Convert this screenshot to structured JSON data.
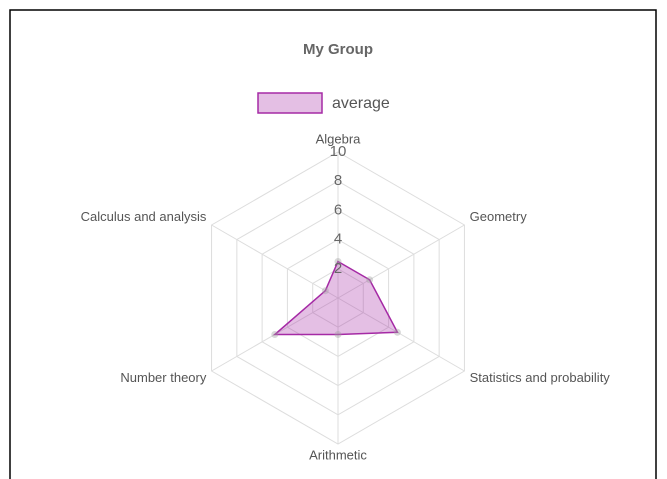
{
  "chart_data": {
    "type": "radar",
    "title": "My Group",
    "categories": [
      "Algebra",
      "Geometry",
      "Statistics and probability",
      "Arithmetic",
      "Number theory",
      "Calculus and analysis"
    ],
    "series": [
      {
        "name": "average",
        "color": "#a52aa5",
        "values": [
          2.5,
          2.5,
          4.7,
          2.5,
          5,
          1
        ]
      }
    ],
    "rlim": [
      0,
      10
    ],
    "rticks": [
      2,
      4,
      6,
      8,
      10
    ],
    "grid": true,
    "legend": "top"
  }
}
